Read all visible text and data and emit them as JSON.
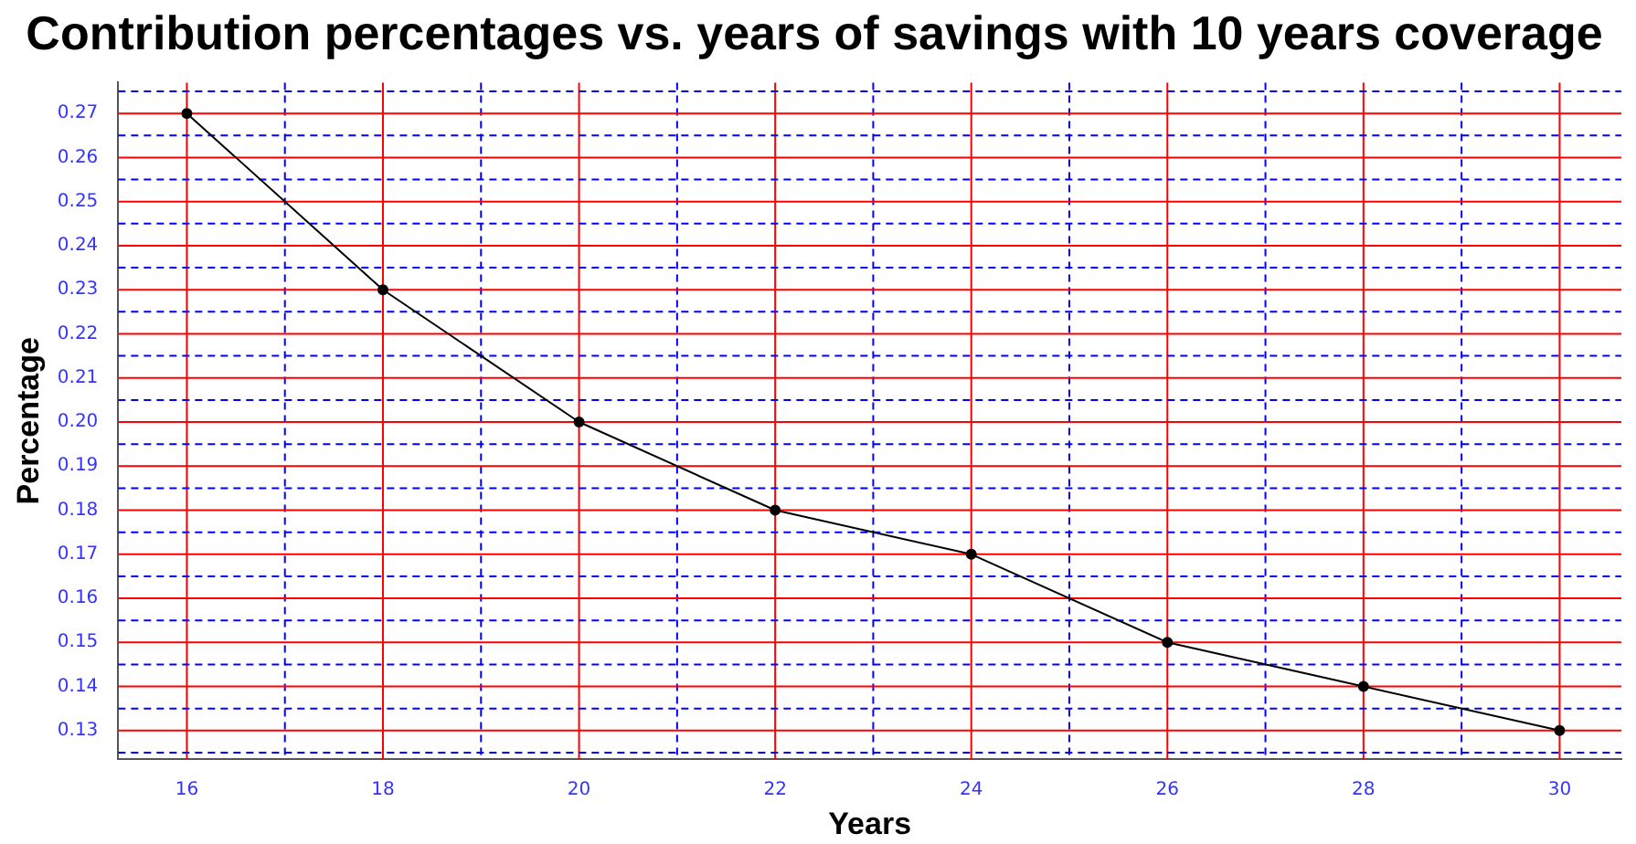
{
  "chart_data": {
    "type": "line",
    "title": "Contribution percentages vs. years of savings with 10 years coverage",
    "xlabel": "Years",
    "ylabel": "Percentage",
    "x": [
      16,
      18,
      20,
      22,
      24,
      26,
      28,
      30
    ],
    "series": [
      {
        "color": "#000000",
        "values": [
          0.27,
          0.23,
          0.2,
          0.18,
          0.17,
          0.15,
          0.14,
          0.13
        ]
      }
    ],
    "xlim": [
      15.3,
      30.63
    ],
    "xticks": [
      16,
      {
        "value": 17,
        "label": null
      },
      18,
      {
        "value": 19,
        "label": null
      },
      20,
      {
        "value": 21,
        "label": null
      },
      22,
      {
        "value": 23,
        "label": null
      },
      24,
      {
        "value": 25,
        "label": null
      },
      26,
      {
        "value": 27,
        "label": null
      },
      28,
      {
        "value": 29,
        "label": null
      },
      30
    ],
    "ylim": [
      0.1235,
      0.277
    ],
    "yticks": [
      {
        "value": 0.125,
        "label": null
      },
      0.13,
      {
        "value": 0.135,
        "label": null
      },
      0.14,
      {
        "value": 0.145,
        "label": null
      },
      0.15,
      {
        "value": 0.155,
        "label": null
      },
      0.16,
      {
        "value": 0.165,
        "label": null
      },
      0.17,
      {
        "value": 0.175,
        "label": null
      },
      0.18,
      {
        "value": 0.185,
        "label": null
      },
      0.19,
      {
        "value": 0.195,
        "label": null
      },
      {
        "value": 0.2,
        "label": "0.20"
      },
      {
        "value": 0.205,
        "label": null
      },
      0.21,
      {
        "value": 0.215,
        "label": null
      },
      0.22,
      {
        "value": 0.225,
        "label": null
      },
      0.23,
      {
        "value": 0.235,
        "label": null
      },
      0.24,
      {
        "value": 0.245,
        "label": null
      },
      0.25,
      {
        "value": 0.255,
        "label": null
      },
      0.26,
      {
        "value": 0.265,
        "label": null
      },
      0.27,
      {
        "value": 0.275,
        "label": null
      }
    ],
    "grid": true,
    "legend": false,
    "marker": "circle",
    "line_style": "solid"
  }
}
